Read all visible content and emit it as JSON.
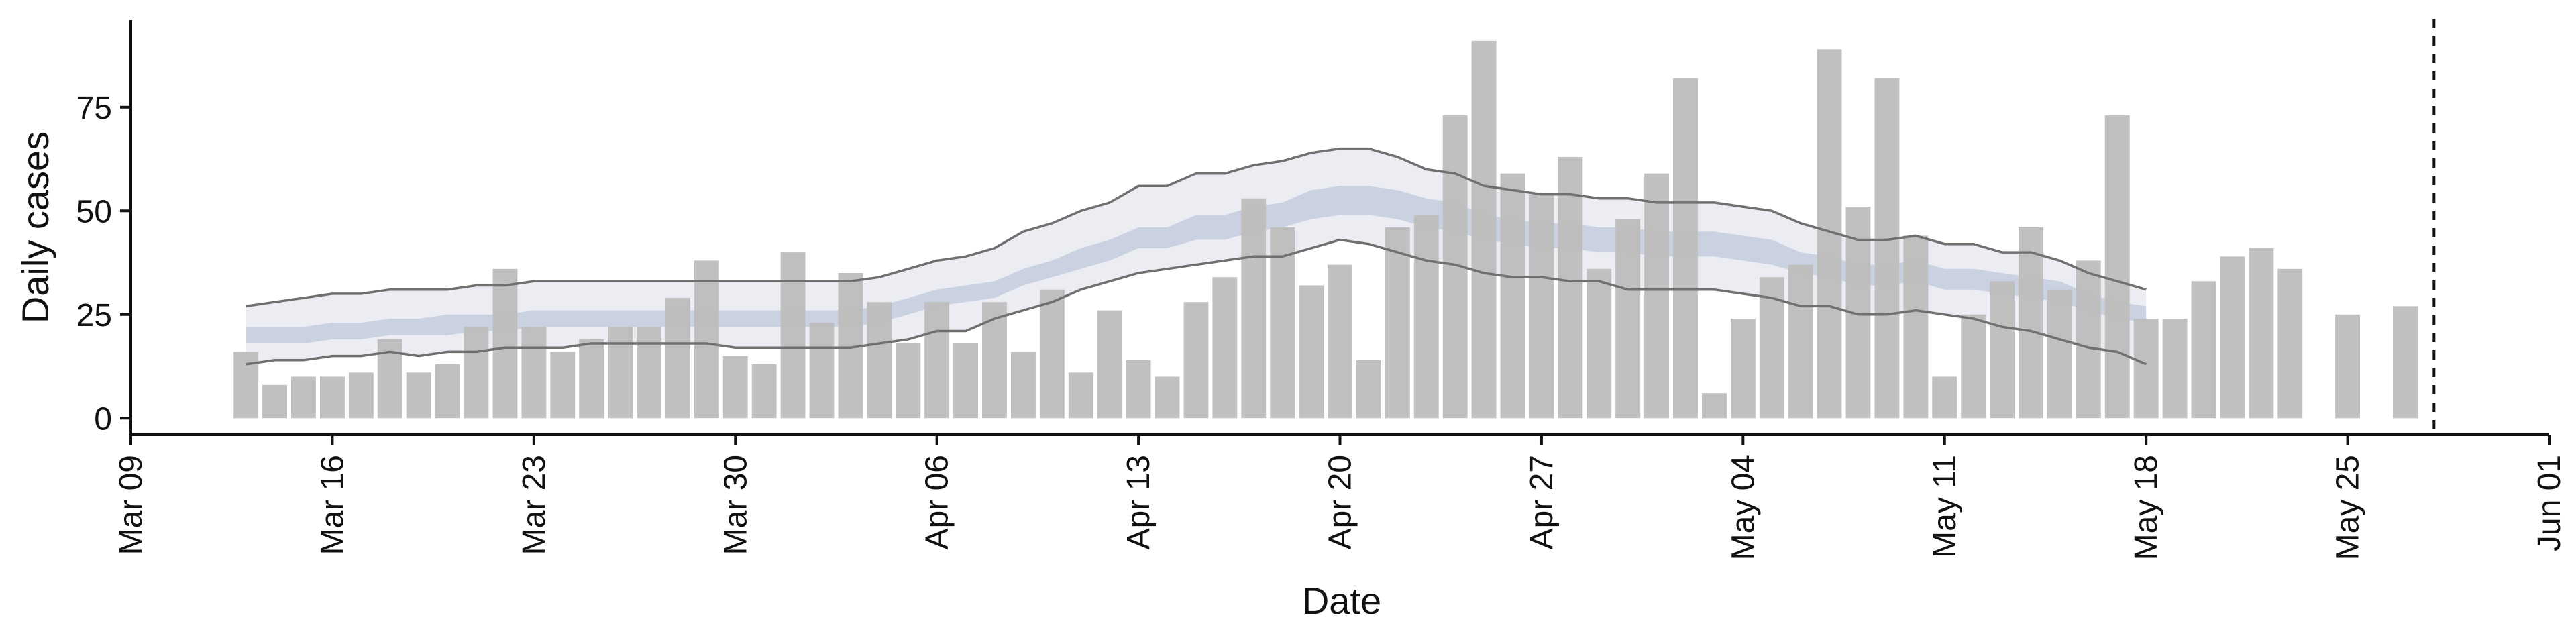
{
  "chart_data": {
    "type": "bar",
    "title": "",
    "xlabel": "Date",
    "ylabel": "Daily cases",
    "x_ticks": [
      "Mar 09",
      "Mar 16",
      "Mar 23",
      "Mar 30",
      "Apr 06",
      "Apr 13",
      "Apr 20",
      "Apr 27",
      "May 04",
      "May 11",
      "May 18",
      "May 25",
      "Jun 01"
    ],
    "y_ticks": [
      "0",
      "25",
      "50",
      "75"
    ],
    "xlim": [
      "2020-03-09",
      "2020-06-01"
    ],
    "ylim": [
      -4,
      96
    ],
    "grid": false,
    "legend": "none",
    "vline": {
      "x": "2020-05-28",
      "style": "dashed"
    },
    "bars": {
      "dates": [
        "2020-03-13",
        "2020-03-14",
        "2020-03-15",
        "2020-03-16",
        "2020-03-17",
        "2020-03-18",
        "2020-03-19",
        "2020-03-20",
        "2020-03-21",
        "2020-03-22",
        "2020-03-23",
        "2020-03-24",
        "2020-03-25",
        "2020-03-26",
        "2020-03-27",
        "2020-03-28",
        "2020-03-29",
        "2020-03-30",
        "2020-03-31",
        "2020-04-01",
        "2020-04-02",
        "2020-04-03",
        "2020-04-04",
        "2020-04-05",
        "2020-04-06",
        "2020-04-07",
        "2020-04-08",
        "2020-04-09",
        "2020-04-10",
        "2020-04-11",
        "2020-04-12",
        "2020-04-13",
        "2020-04-14",
        "2020-04-15",
        "2020-04-16",
        "2020-04-17",
        "2020-04-18",
        "2020-04-19",
        "2020-04-20",
        "2020-04-21",
        "2020-04-22",
        "2020-04-23",
        "2020-04-24",
        "2020-04-25",
        "2020-04-26",
        "2020-04-27",
        "2020-04-28",
        "2020-04-29",
        "2020-04-30",
        "2020-05-01",
        "2020-05-02",
        "2020-05-03",
        "2020-05-04",
        "2020-05-05",
        "2020-05-06",
        "2020-05-07",
        "2020-05-08",
        "2020-05-09",
        "2020-05-10",
        "2020-05-11",
        "2020-05-12",
        "2020-05-13",
        "2020-05-14",
        "2020-05-15",
        "2020-05-16",
        "2020-05-17",
        "2020-05-18",
        "2020-05-19",
        "2020-05-20",
        "2020-05-21",
        "2020-05-22",
        "2020-05-23",
        "2020-05-25",
        "2020-05-27"
      ],
      "values": [
        16,
        8,
        10,
        10,
        11,
        19,
        11,
        13,
        22,
        36,
        22,
        16,
        19,
        22,
        22,
        29,
        38,
        15,
        13,
        40,
        23,
        35,
        28,
        18,
        28,
        18,
        28,
        16,
        31,
        11,
        26,
        14,
        10,
        28,
        34,
        53,
        46,
        32,
        37,
        14,
        46,
        49,
        73,
        91,
        59,
        54,
        63,
        36,
        48,
        59,
        82,
        6,
        24,
        34,
        37,
        89,
        51,
        82,
        44,
        10,
        25,
        33,
        46,
        31,
        38,
        73,
        24,
        24,
        33,
        39,
        41,
        36,
        25,
        27
      ]
    },
    "series": [
      {
        "name": "",
        "x_range": [
          "2020-03-13",
          "2020-05-18"
        ],
        "band_outer_upper": [
          27,
          28,
          29,
          30,
          30,
          31,
          31,
          31,
          32,
          32,
          33,
          33,
          33,
          33,
          33,
          33,
          33,
          33,
          33,
          33,
          33,
          33,
          34,
          36,
          38,
          39,
          41,
          45,
          47,
          50,
          52,
          56,
          56,
          59,
          59,
          61,
          62,
          64,
          65,
          65,
          63,
          60,
          59,
          56,
          55,
          54,
          54,
          53,
          53,
          52,
          52,
          52,
          51,
          50,
          47,
          45,
          43,
          43,
          44,
          42,
          42,
          40,
          40,
          38,
          35,
          33,
          31
        ],
        "band_inner_upper": [
          22,
          22,
          22,
          23,
          23,
          24,
          24,
          25,
          25,
          25,
          26,
          26,
          26,
          26,
          26,
          26,
          26,
          26,
          26,
          26,
          26,
          26,
          27,
          29,
          31,
          32,
          33,
          36,
          38,
          41,
          43,
          46,
          46,
          49,
          49,
          51,
          52,
          55,
          56,
          56,
          55,
          53,
          52,
          49,
          48,
          47,
          47,
          46,
          46,
          45,
          45,
          45,
          44,
          43,
          40,
          39,
          37,
          37,
          38,
          36,
          36,
          35,
          34,
          33,
          30,
          28,
          27
        ],
        "band_inner_lower": [
          18,
          18,
          18,
          19,
          19,
          20,
          20,
          20,
          21,
          21,
          22,
          22,
          22,
          22,
          22,
          22,
          22,
          22,
          22,
          22,
          22,
          22,
          23,
          25,
          27,
          28,
          29,
          32,
          34,
          36,
          38,
          41,
          41,
          43,
          43,
          45,
          46,
          48,
          49,
          49,
          48,
          46,
          45,
          43,
          42,
          41,
          41,
          40,
          40,
          39,
          39,
          39,
          38,
          37,
          35,
          34,
          32,
          32,
          33,
          31,
          31,
          30,
          29,
          28,
          26,
          24,
          23
        ],
        "band_outer_lower": [
          13,
          14,
          14,
          15,
          15,
          16,
          15,
          16,
          16,
          17,
          17,
          17,
          18,
          18,
          18,
          18,
          18,
          17,
          17,
          17,
          17,
          17,
          18,
          19,
          21,
          21,
          24,
          26,
          28,
          31,
          33,
          35,
          36,
          37,
          38,
          39,
          39,
          41,
          43,
          42,
          40,
          38,
          37,
          35,
          34,
          34,
          33,
          33,
          31,
          31,
          31,
          31,
          30,
          29,
          27,
          27,
          25,
          25,
          26,
          25,
          24,
          22,
          21,
          19,
          17,
          16,
          13
        ],
        "band_outer_color": "#e8eaf1",
        "band_inner_color": "#c7cee0",
        "outline_color": "#707070"
      }
    ],
    "colors": {
      "bar": "#bdbdbd",
      "axis": "#111111",
      "vline": "#111111"
    }
  }
}
